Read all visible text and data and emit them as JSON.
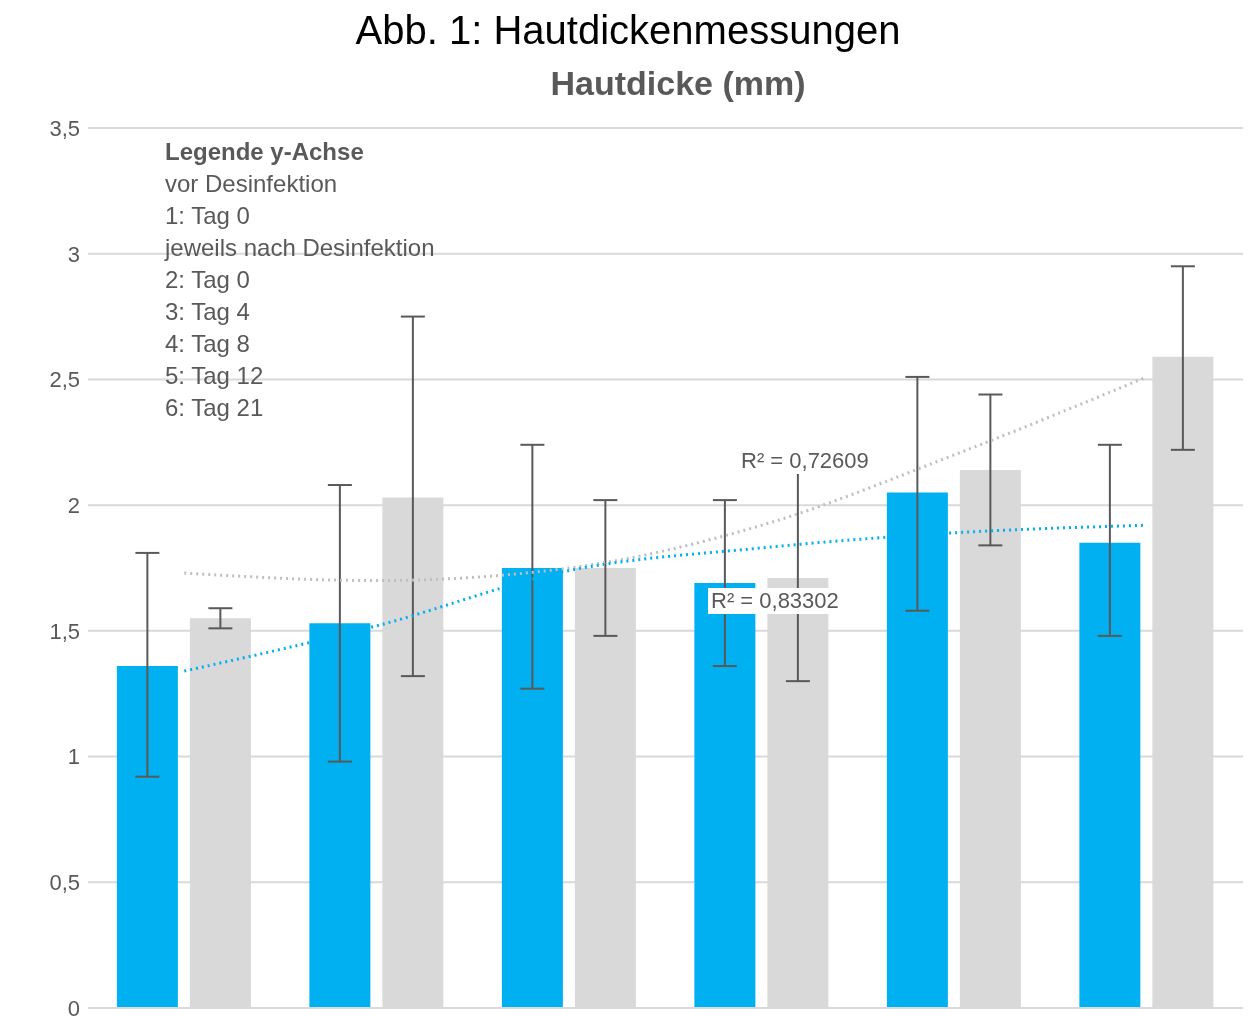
{
  "chart_data": {
    "type": "bar",
    "title": "Abb. 1: Hautdickenmessungen",
    "subtitle": "Hautdicke (mm)",
    "categories": [
      null,
      null,
      null,
      null,
      null,
      null
    ],
    "series": [
      {
        "color": "#00b0f0",
        "values": [
          1.36,
          1.53,
          1.75,
          1.69,
          2.05,
          1.85
        ],
        "errors": [
          [
            0.92,
            1.81
          ],
          [
            0.98,
            2.08
          ],
          [
            1.27,
            2.24
          ],
          [
            1.36,
            2.02
          ],
          [
            1.58,
            2.51
          ],
          [
            1.48,
            2.24
          ]
        ]
      },
      {
        "color": "#d9d9d9",
        "values": [
          1.55,
          2.03,
          1.75,
          1.71,
          2.14,
          2.59
        ],
        "errors": [
          [
            1.51,
            1.59
          ],
          [
            1.32,
            2.75
          ],
          [
            1.48,
            2.02
          ],
          [
            1.3,
            2.13
          ],
          [
            1.84,
            2.44
          ],
          [
            2.22,
            2.95
          ]
        ]
      },
      {
        "type": "line",
        "color": "#bfbfbf",
        "line_style": "dotted",
        "values": [
          1.73,
          1.7,
          1.75,
          1.92,
          2.2,
          2.51
        ]
      },
      {
        "type": "line",
        "color": "#00b0f0",
        "line_style": "dotted",
        "values": [
          1.34,
          1.52,
          1.74,
          1.83,
          1.89,
          1.92
        ]
      }
    ],
    "ylim": [
      0,
      3.5
    ],
    "yticks": [
      {
        "value": 0,
        "label": "0"
      },
      {
        "value": 0.5,
        "label": "0,5"
      },
      {
        "value": 1,
        "label": "1"
      },
      {
        "value": 1.5,
        "label": "1,5"
      },
      {
        "value": 2,
        "label": "2"
      },
      {
        "value": 2.5,
        "label": "2,5"
      },
      {
        "value": 3,
        "label": "3"
      },
      {
        "value": 3.5,
        "label": "3,5"
      }
    ],
    "grid": "y",
    "legend": false,
    "marker": "none",
    "annotations": [
      "Legende y-Achse",
      "vor Desinfektion",
      "1: Tag 0",
      "jeweils nach Desinfektion",
      "2: Tag 0",
      "3: Tag 4",
      "4: Tag 8",
      "5: Tag 12",
      "6: Tag 21",
      "R² = 0,72609",
      "R² = 0,83302"
    ]
  }
}
